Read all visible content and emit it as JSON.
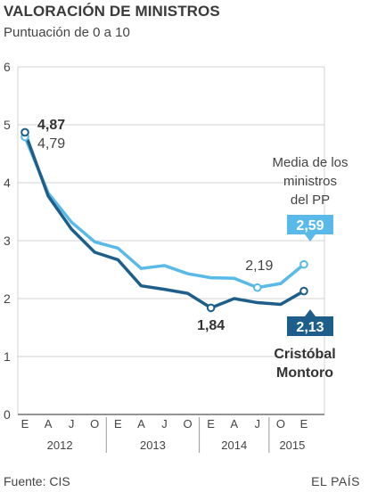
{
  "header": {
    "title": "VALORACIÓN DE MINISTROS",
    "subtitle": "Puntuación de 0 a 10"
  },
  "footer": {
    "source": "Fuente: CIS",
    "brand": "EL PAÍS"
  },
  "colors": {
    "montoro": "#1d5f8a",
    "media": "#59b9e8",
    "grid": "#d3d3d3",
    "axis": "#555555",
    "text": "#3a3a3a"
  },
  "chart_data": {
    "type": "line",
    "ylim": [
      0,
      6
    ],
    "yticks": [
      "0",
      "1",
      "2",
      "3",
      "4",
      "5",
      "6"
    ],
    "x_index_range": [
      0,
      12
    ],
    "quarter_labels": [
      "E",
      "A",
      "J",
      "O",
      "E",
      "A",
      "J",
      "O",
      "E",
      "A",
      "J",
      "O",
      "E",
      "A"
    ],
    "years": [
      {
        "label": "2012",
        "from": 0,
        "to": 3
      },
      {
        "label": "2013",
        "from": 4,
        "to": 7
      },
      {
        "label": "2014",
        "from": 8,
        "to": 10
      },
      {
        "label": "2015",
        "from": 11,
        "to": 12
      }
    ],
    "series": [
      {
        "key": "media",
        "x": [
          0,
          1,
          2,
          3,
          4,
          5,
          6,
          7,
          8,
          9,
          10,
          11,
          12
        ],
        "values": [
          4.79,
          3.82,
          3.32,
          2.98,
          2.87,
          2.52,
          2.57,
          2.43,
          2.36,
          2.35,
          2.19,
          2.26,
          2.59
        ]
      },
      {
        "key": "montoro",
        "x": [
          0,
          1,
          2,
          3,
          4,
          5,
          6,
          7,
          8,
          9,
          10,
          11,
          12
        ],
        "values": [
          4.87,
          3.77,
          3.2,
          2.8,
          2.67,
          2.22,
          2.16,
          2.09,
          1.84,
          2.0,
          1.93,
          1.9,
          2.13
        ]
      }
    ],
    "annotations": {
      "montoro_start": "4,87",
      "media_start": "4,79",
      "media_min": "2,19",
      "montoro_min": "1,84",
      "media_end": "2,59",
      "montoro_end": "2,13",
      "media_label": [
        "Media de los",
        "ministros",
        "del PP"
      ],
      "montoro_label": [
        "Cristóbal",
        "Montoro"
      ]
    }
  }
}
